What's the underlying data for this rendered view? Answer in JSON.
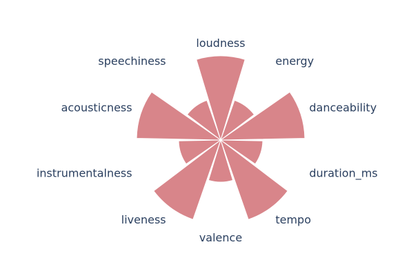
{
  "chart_data": {
    "type": "barpolar",
    "categories": [
      "loudness",
      "energy",
      "danceability",
      "duration_ms",
      "tempo",
      "valence",
      "liveness",
      "instrumentalness",
      "acousticness",
      "speechiness"
    ],
    "values": [
      1.0,
      0.5,
      1.0,
      0.5,
      1.0,
      0.5,
      1.0,
      0.5,
      1.0,
      0.5
    ],
    "radial_range": [
      0,
      1.0
    ],
    "angular_direction": "clockwise",
    "rotation": "first category at top",
    "colors": {
      "bar": "#d8858a",
      "label": "#2a3f5f",
      "background": "#ffffff"
    }
  }
}
